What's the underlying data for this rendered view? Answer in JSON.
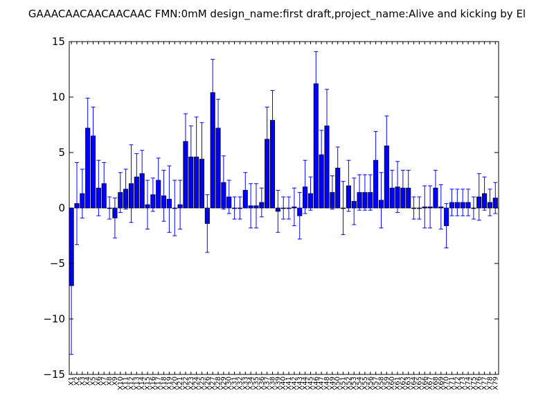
{
  "chart_data": {
    "type": "bar",
    "title": "GAAACAACAACAACAAC  FMN:0mM  design_name:first draft,project_name:Alive and kicking by El",
    "xlabel": "",
    "ylabel": "",
    "ylim": [
      -15,
      15
    ],
    "yticks": [
      -15,
      -10,
      -5,
      0,
      5,
      10,
      15
    ],
    "ytick_labels": [
      "−15",
      "−10",
      "−5",
      "0",
      "5",
      "10",
      "15"
    ],
    "grid": false,
    "bar_color": "#0000ff",
    "error_color": "#0000ff",
    "categories": [
      "X1",
      "X2",
      "X3",
      "X4",
      "X5",
      "X6",
      "X7",
      "X8",
      "X9",
      "X10",
      "X11",
      "X12",
      "X13",
      "X14",
      "X15",
      "X16",
      "X17",
      "X18",
      "X19",
      "X20",
      "X21",
      "X22",
      "X23",
      "X24",
      "X25",
      "X26",
      "X27",
      "X28",
      "X29",
      "X30",
      "X31",
      "X32",
      "X33",
      "X34",
      "X35",
      "X36",
      "X37",
      "X38",
      "X39",
      "X40",
      "X41",
      "X42",
      "X43",
      "X44",
      "X45",
      "X46",
      "X47",
      "X48",
      "X49",
      "X50",
      "X51",
      "X52",
      "X53",
      "X54",
      "X55",
      "X56",
      "X57",
      "X58",
      "X59",
      "X60",
      "X61",
      "X62",
      "X63",
      "X64",
      "X65",
      "X66",
      "X67",
      "X68",
      "X69",
      "X70",
      "X71",
      "X72",
      "X73",
      "X74",
      "X75",
      "X76",
      "X77",
      "X78",
      "X79"
    ],
    "values": [
      -7.0,
      0.4,
      1.3,
      7.2,
      6.5,
      1.8,
      2.2,
      0.0,
      -0.9,
      1.4,
      1.7,
      2.2,
      2.8,
      3.1,
      0.3,
      1.2,
      2.5,
      1.1,
      0.8,
      0.0,
      0.3,
      6.0,
      4.6,
      4.6,
      4.4,
      -1.4,
      10.4,
      7.2,
      2.3,
      1.0,
      0.0,
      0.0,
      1.6,
      0.2,
      0.2,
      0.5,
      6.2,
      7.9,
      -0.3,
      0.0,
      0.0,
      0.1,
      -0.7,
      1.9,
      1.3,
      11.2,
      4.8,
      7.4,
      1.4,
      3.6,
      0.0,
      2.0,
      0.6,
      1.4,
      1.4,
      1.4,
      4.3,
      0.7,
      5.6,
      1.8,
      1.9,
      1.8,
      1.8,
      0.0,
      0.0,
      0.1,
      0.1,
      1.8,
      0.1,
      -1.6,
      0.5,
      0.5,
      0.5,
      0.5,
      0.0,
      1.0,
      1.3,
      0.5,
      0.9
    ],
    "errors": [
      6.2,
      3.7,
      2.2,
      2.7,
      2.6,
      2.5,
      1.9,
      1.0,
      1.8,
      1.8,
      1.8,
      3.5,
      2.1,
      2.1,
      2.2,
      1.5,
      2.0,
      2.3,
      3.0,
      2.5,
      2.2,
      2.5,
      2.8,
      3.6,
      3.3,
      2.6,
      3.0,
      2.6,
      2.4,
      1.5,
      1.0,
      1.0,
      1.6,
      2.0,
      2.0,
      1.3,
      2.9,
      2.7,
      1.9,
      1.0,
      1.0,
      1.7,
      2.1,
      2.4,
      1.5,
      2.9,
      2.2,
      3.3,
      1.5,
      1.9,
      2.4,
      2.3,
      2.1,
      1.6,
      1.6,
      1.6,
      2.6,
      2.5,
      2.7,
      1.6,
      2.3,
      1.6,
      1.6,
      1.0,
      1.0,
      1.9,
      1.9,
      1.6,
      2.0,
      2.0,
      1.2,
      1.2,
      1.2,
      1.2,
      1.0,
      2.1,
      1.5,
      1.2,
      1.4
    ]
  }
}
